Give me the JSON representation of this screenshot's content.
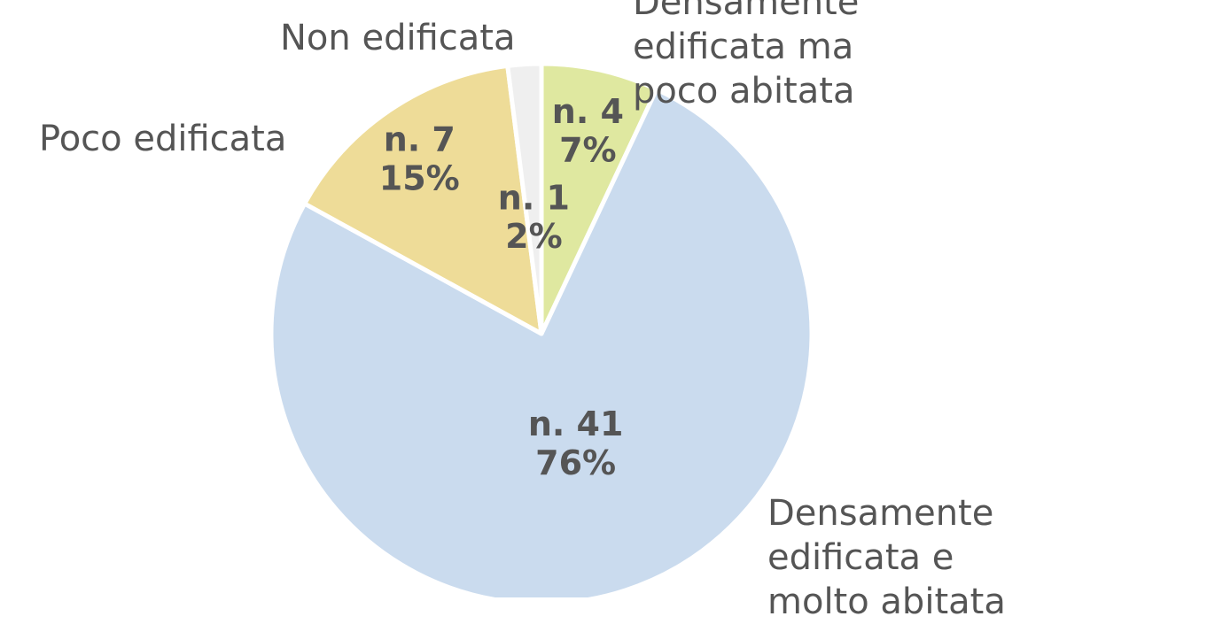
{
  "chart_data": {
    "type": "pie",
    "categories": [
      "Densamente edificata ma poco abitata",
      "Densamente edificata e molto abitata",
      "Poco edificata",
      "Non edificata"
    ],
    "values": [
      7,
      76,
      15,
      2
    ],
    "value_labels": [
      "7%",
      "76%",
      "15%",
      "2%"
    ],
    "count_labels": [
      "n. 4",
      "n. 41",
      "n. 7",
      "n. 1"
    ],
    "colors": [
      "#dfe8a0",
      "#cadbee",
      "#eedc98",
      "#efefef"
    ]
  }
}
